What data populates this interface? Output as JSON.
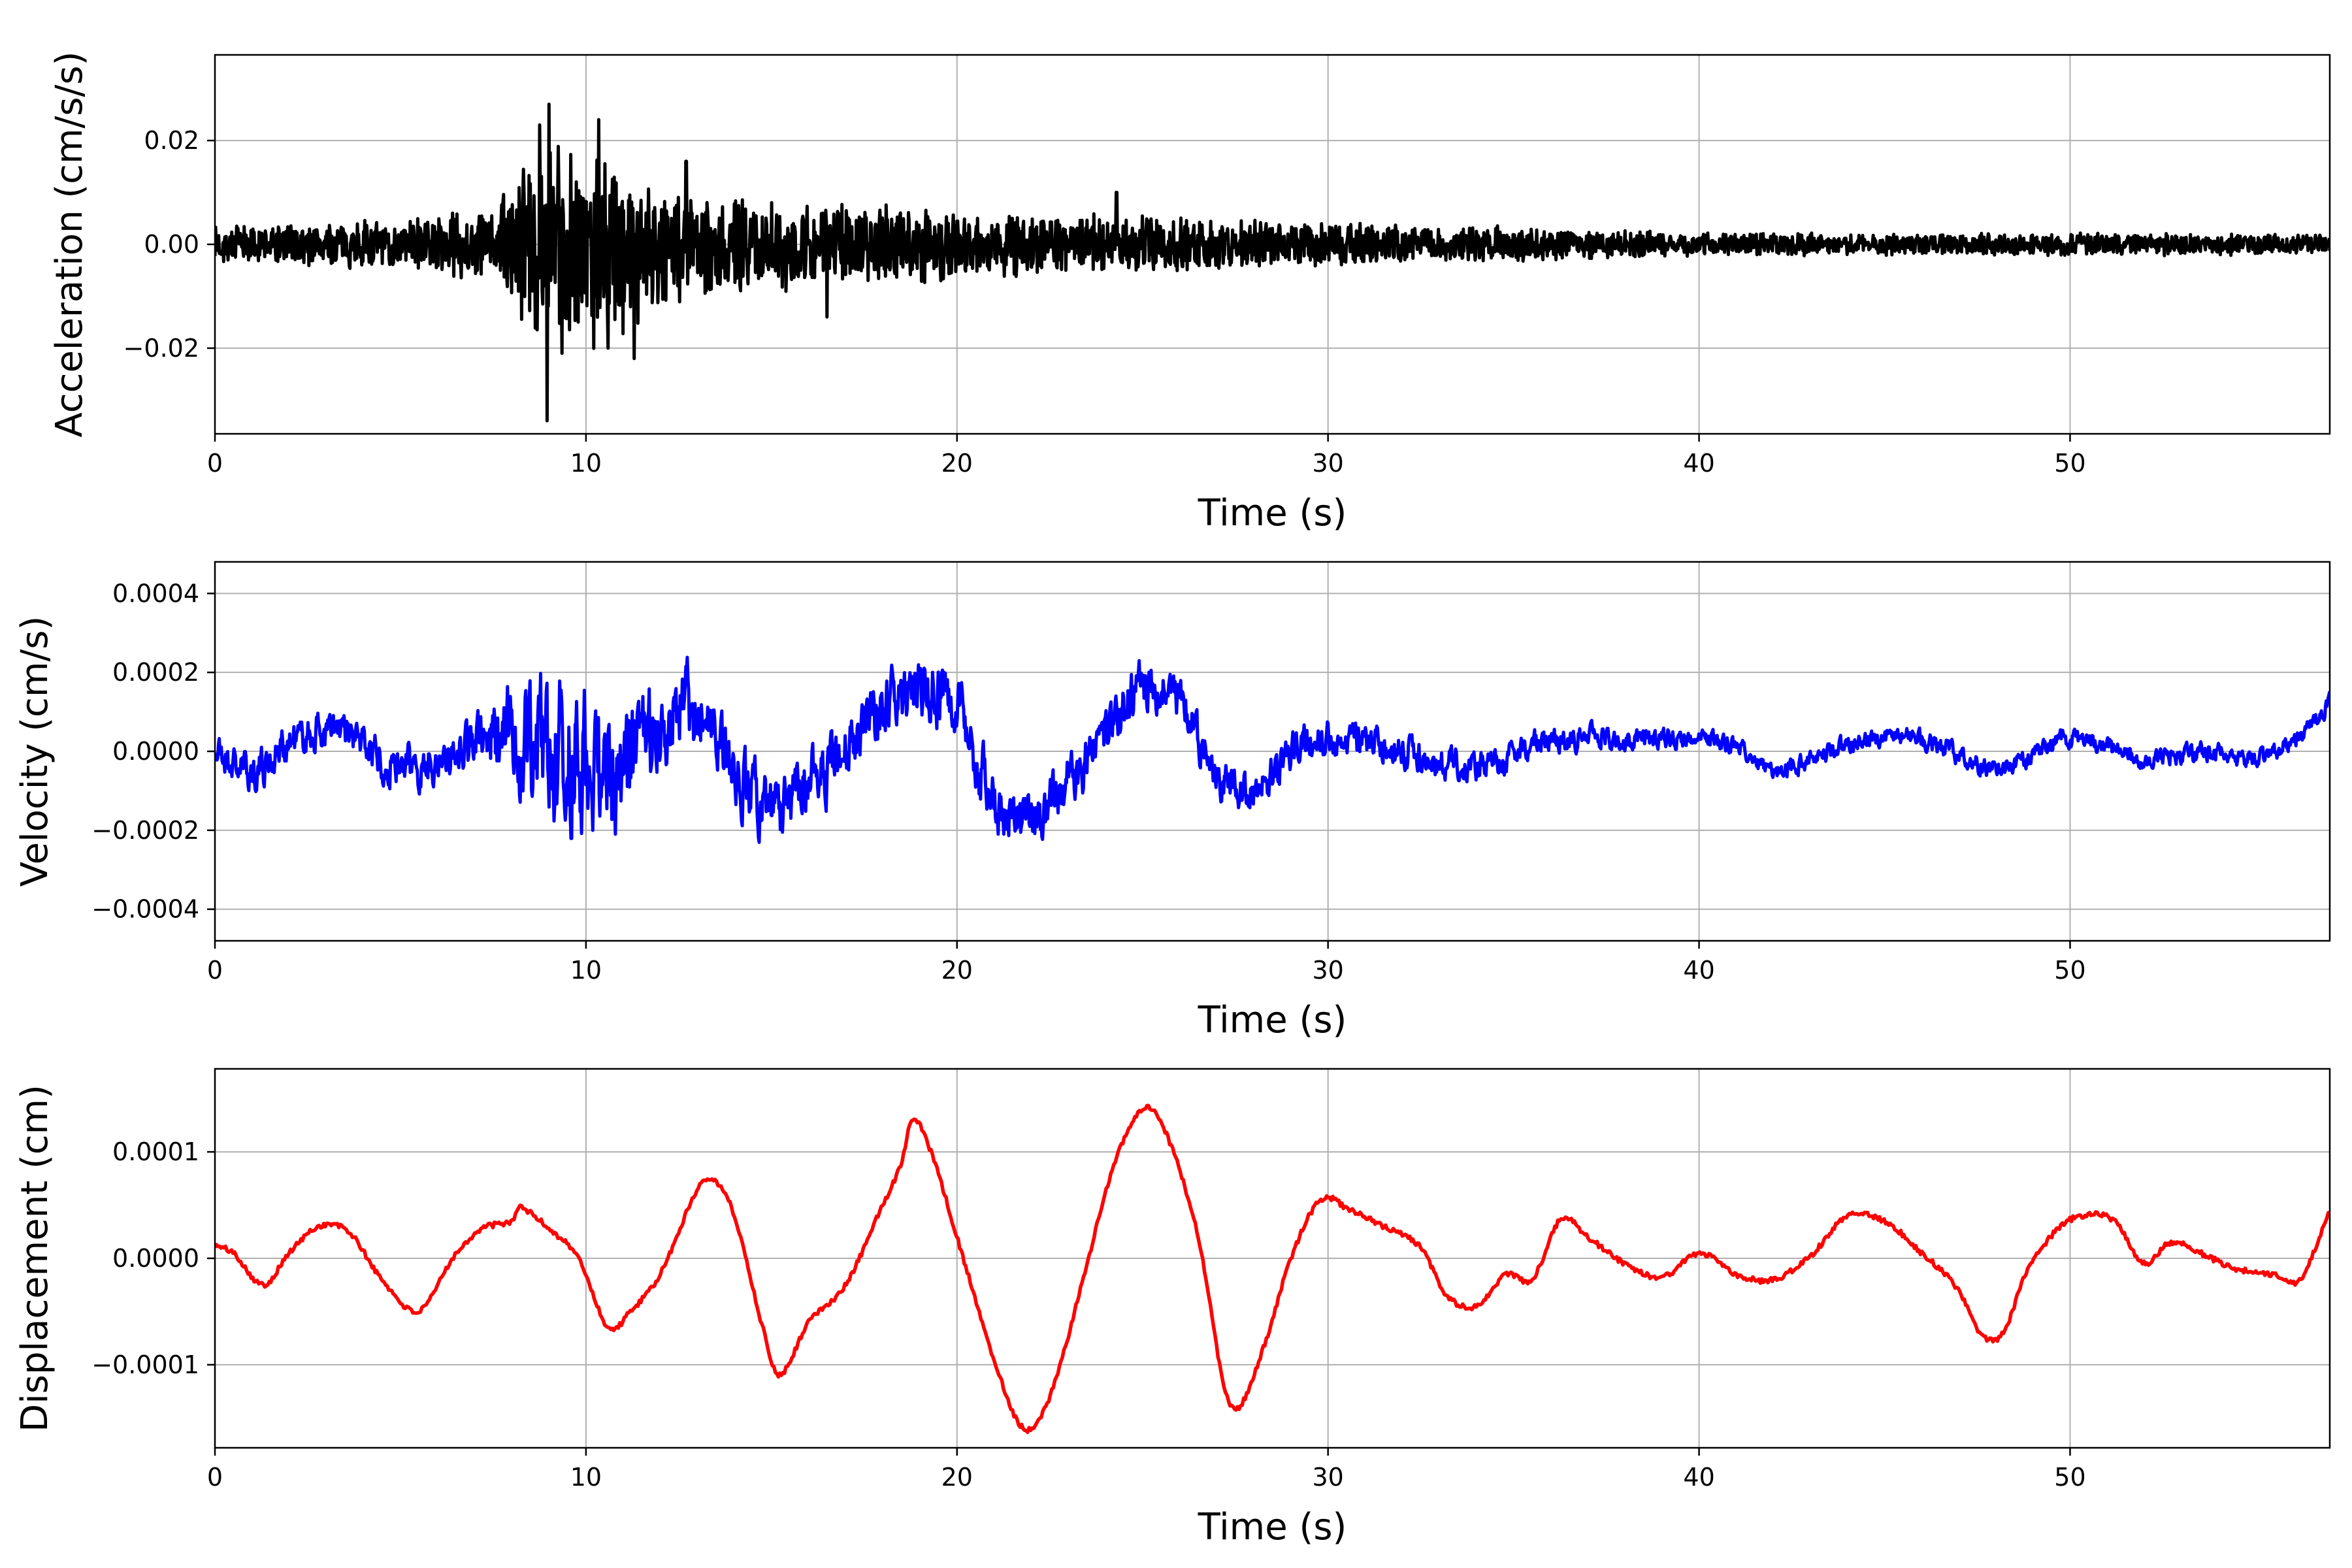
{
  "chart_data": [
    {
      "type": "line",
      "xlabel": "Time (s)",
      "ylabel": "Acceleration (cm/s/s)",
      "xlim": [
        0,
        57
      ],
      "ylim": [
        -0.0365,
        0.0365
      ],
      "xticks": [
        0,
        10,
        20,
        30,
        40,
        50
      ],
      "yticks": [
        -0.02,
        0.0,
        0.02
      ],
      "ytick_labels": [
        "−0.02",
        "0.00",
        "0.02"
      ],
      "grid": true,
      "series": [
        {
          "color": "#000000",
          "envelope": {
            "t": [
              0,
              5,
              7.5,
              8.5,
              9.5,
              10.5,
              12,
              14,
              18,
              22,
              26,
              30,
              35,
              40,
              45,
              50,
              57
            ],
            "amp": [
              0.004,
              0.005,
              0.008,
              0.018,
              0.024,
              0.02,
              0.014,
              0.01,
              0.008,
              0.007,
              0.0055,
              0.0045,
              0.0035,
              0.0025,
              0.0022,
              0.0025,
              0.002
            ]
          },
          "peaks": [
            {
              "t": 8.75,
              "v": 0.023
            },
            {
              "t": 8.95,
              "v": -0.034
            },
            {
              "t": 9.0,
              "v": 0.027
            },
            {
              "t": 9.35,
              "v": -0.021
            },
            {
              "t": 10.35,
              "v": 0.024
            },
            {
              "t": 10.6,
              "v": -0.02
            },
            {
              "t": 11.3,
              "v": -0.022
            },
            {
              "t": 12.7,
              "v": 0.016
            },
            {
              "t": 16.5,
              "v": -0.014
            },
            {
              "t": 24.3,
              "v": 0.01
            }
          ]
        }
      ]
    },
    {
      "type": "line",
      "xlabel": "Time (s)",
      "ylabel": "Velocity (cm/s)",
      "xlim": [
        0,
        57
      ],
      "ylim": [
        -0.00048,
        0.00048
      ],
      "xticks": [
        0,
        10,
        20,
        30,
        40,
        50
      ],
      "yticks": [
        -0.0004,
        -0.0002,
        0.0,
        0.0002,
        0.0004
      ],
      "ytick_labels": [
        "−0.0004",
        "−0.0002",
        "0.0000",
        "0.0002",
        "0.0004"
      ],
      "grid": true,
      "series": [
        {
          "color": "#0000ff",
          "trend": {
            "t": [
              0,
              1,
              2,
              3,
              4,
              5,
              6,
              7,
              8,
              9,
              10,
              11,
              12,
              13,
              14,
              15,
              16,
              17,
              18,
              19,
              20,
              21,
              22,
              23,
              24,
              25,
              26,
              27,
              28,
              29,
              30,
              32,
              34,
              36,
              38,
              40,
              41,
              42,
              44,
              46,
              48,
              50,
              52,
              54,
              55,
              56,
              57
            ],
            "v": [
              0.0,
              -5e-05,
              2e-05,
              5e-05,
              2e-05,
              -4e-05,
              -2e-05,
              3e-05,
              3e-05,
              0.0,
              -3e-05,
              -5e-05,
              8e-05,
              0.0001,
              -5e-05,
              -0.00015,
              -8e-05,
              0.0,
              0.0001,
              0.00015,
              0.0001,
              -0.00012,
              -0.00018,
              -8e-05,
              5e-05,
              0.00016,
              0.00012,
              -5e-05,
              -0.0001,
              0.0,
              3e-05,
              0.0,
              -4e-05,
              3e-05,
              3e-05,
              3e-05,
              1e-05,
              -5e-05,
              2e-05,
              3e-05,
              -4e-05,
              3e-05,
              -2e-05,
              0.0,
              -2e-05,
              3e-05,
              0.00012
            ]
          },
          "envelope": {
            "t": [
              0,
              7,
              8,
              9,
              10,
              11,
              12,
              14,
              18,
              20,
              22,
              24,
              26,
              28,
              30,
              35,
              40,
              50,
              57
            ],
            "amp": [
              4e-05,
              5e-05,
              0.00012,
              0.00018,
              0.00016,
              0.00014,
              0.0001,
              7e-05,
              7e-05,
              7e-05,
              6e-05,
              6e-05,
              5e-05,
              4e-05,
              4e-05,
              3e-05,
              2e-05,
              2e-05,
              2e-05
            ]
          }
        }
      ]
    },
    {
      "type": "line",
      "xlabel": "Time (s)",
      "ylabel": "Displacement (cm)",
      "xlim": [
        0,
        57
      ],
      "ylim": [
        -0.000178,
        0.000178
      ],
      "xticks": [
        0,
        10,
        20,
        30,
        40,
        50
      ],
      "yticks": [
        -0.0001,
        0.0,
        0.0001
      ],
      "ytick_labels": [
        "−0.0001",
        "0.0000",
        "0.0001"
      ],
      "grid": true,
      "series": [
        {
          "color": "#ff0000",
          "x": [
            0,
            0.5,
            1.3,
            2.0,
            2.8,
            3.6,
            4.5,
            5.5,
            6.4,
            7.2,
            8.0,
            8.2,
            9.0,
            9.8,
            10.6,
            11.2,
            12.0,
            13.0,
            13.4,
            14.0,
            14.8,
            15.2,
            16.0,
            17.0,
            17.8,
            18.5,
            18.8,
            19.3,
            20.0,
            21.0,
            21.8,
            22.5,
            23.4,
            24.2,
            25.0,
            25.6,
            26.5,
            27.2,
            27.6,
            28.3,
            29.0,
            29.8,
            30.6,
            31.5,
            32.5,
            33.2,
            34.0,
            34.8,
            35.5,
            36.3,
            37.0,
            38.0,
            39.0,
            40.0,
            41.0,
            42.0,
            43.0,
            44.0,
            45.0,
            46.0,
            47.0,
            47.6,
            48.2,
            48.8,
            49.6,
            50.3,
            51.2,
            52.0,
            52.7,
            53.5,
            54.5,
            55.5,
            56.2,
            57.0
          ],
          "y": [
            1.2e-05,
            5e-06,
            -2.5e-05,
            5e-06,
            3e-05,
            2.5e-05,
            -2e-05,
            -5e-05,
            0.0,
            2.8e-05,
            3.5e-05,
            4.8e-05,
            2.8e-05,
            0.0,
            -6.5e-05,
            -5e-05,
            -1.5e-05,
            6.5e-05,
            7.5e-05,
            4e-05,
            -7e-05,
            -0.00011,
            -6e-05,
            -2.5e-05,
            3.5e-05,
            9e-05,
            0.000132,
            0.0001,
            2e-05,
            -9.5e-05,
            -0.00016,
            -0.00013,
            -2e-05,
            8.5e-05,
            0.00014,
            0.00012,
            2e-05,
            -0.00012,
            -0.00014,
            -8e-05,
            0.0,
            5.5e-05,
            4.5e-05,
            3e-05,
            1e-05,
            -3.5e-05,
            -4.5e-05,
            -1.5e-05,
            -2e-05,
            3.8e-05,
            2e-05,
            -5e-06,
            -1.8e-05,
            5e-06,
            -1.5e-05,
            -2e-05,
            2e-06,
            4e-05,
            3.5e-05,
            5e-06,
            -3e-05,
            -7.2e-05,
            -7e-05,
            -1.5e-05,
            2.5e-05,
            4e-05,
            3.5e-05,
            -5e-06,
            1.5e-05,
            5e-06,
            -1e-05,
            -1.5e-05,
            -2e-05,
            4.5e-05
          ]
        }
      ]
    }
  ]
}
